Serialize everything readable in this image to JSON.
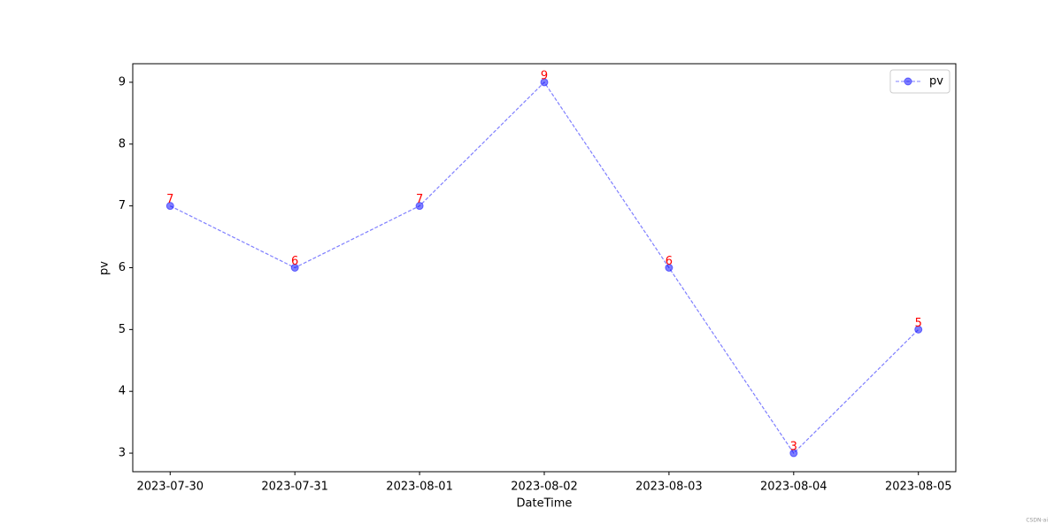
{
  "chart_data": {
    "type": "line",
    "xlabel": "DateTime",
    "ylabel": "pv",
    "categories": [
      "2023-07-30",
      "2023-07-31",
      "2023-08-01",
      "2023-08-02",
      "2023-08-03",
      "2023-08-04",
      "2023-08-05"
    ],
    "series": [
      {
        "name": "pv",
        "color": "#0000ff",
        "values": [
          7,
          6,
          7,
          9,
          6,
          3,
          5
        ]
      }
    ],
    "label_color": "#ff0000",
    "ylim": [
      2.7,
      9.3
    ],
    "yticks": [
      3,
      4,
      5,
      6,
      7,
      8,
      9
    ],
    "grid": false,
    "legend": "upper right",
    "watermark": "CSDN-ai"
  }
}
